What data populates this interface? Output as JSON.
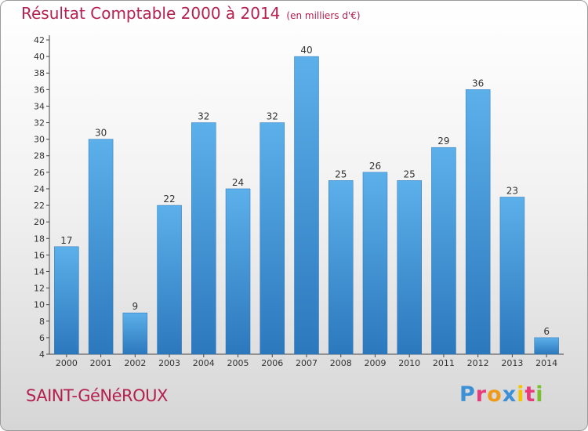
{
  "header": {
    "title": "Résultat Comptable 2000 à 2014",
    "unit": "(en milliers d'€)"
  },
  "footer": {
    "commune": "SAINT-GéNéROUX",
    "logo_letters": [
      "P",
      "r",
      "o",
      "x",
      "i",
      "t",
      "i"
    ]
  },
  "chart_data": {
    "type": "bar",
    "categories": [
      "2000",
      "2001",
      "2002",
      "2003",
      "2004",
      "2005",
      "2006",
      "2007",
      "2008",
      "2009",
      "2010",
      "2011",
      "2012",
      "2013",
      "2014"
    ],
    "values": [
      17,
      30,
      9,
      22,
      32,
      24,
      32,
      40,
      25,
      26,
      25,
      29,
      36,
      23,
      6
    ],
    "title": "Résultat Comptable 2000 à 2014",
    "ylim": [
      4,
      42
    ],
    "ytick_step": 2,
    "grid": false,
    "data_labels": true,
    "bar_color": "#3a8fd6",
    "title_color": "#b4204f"
  }
}
